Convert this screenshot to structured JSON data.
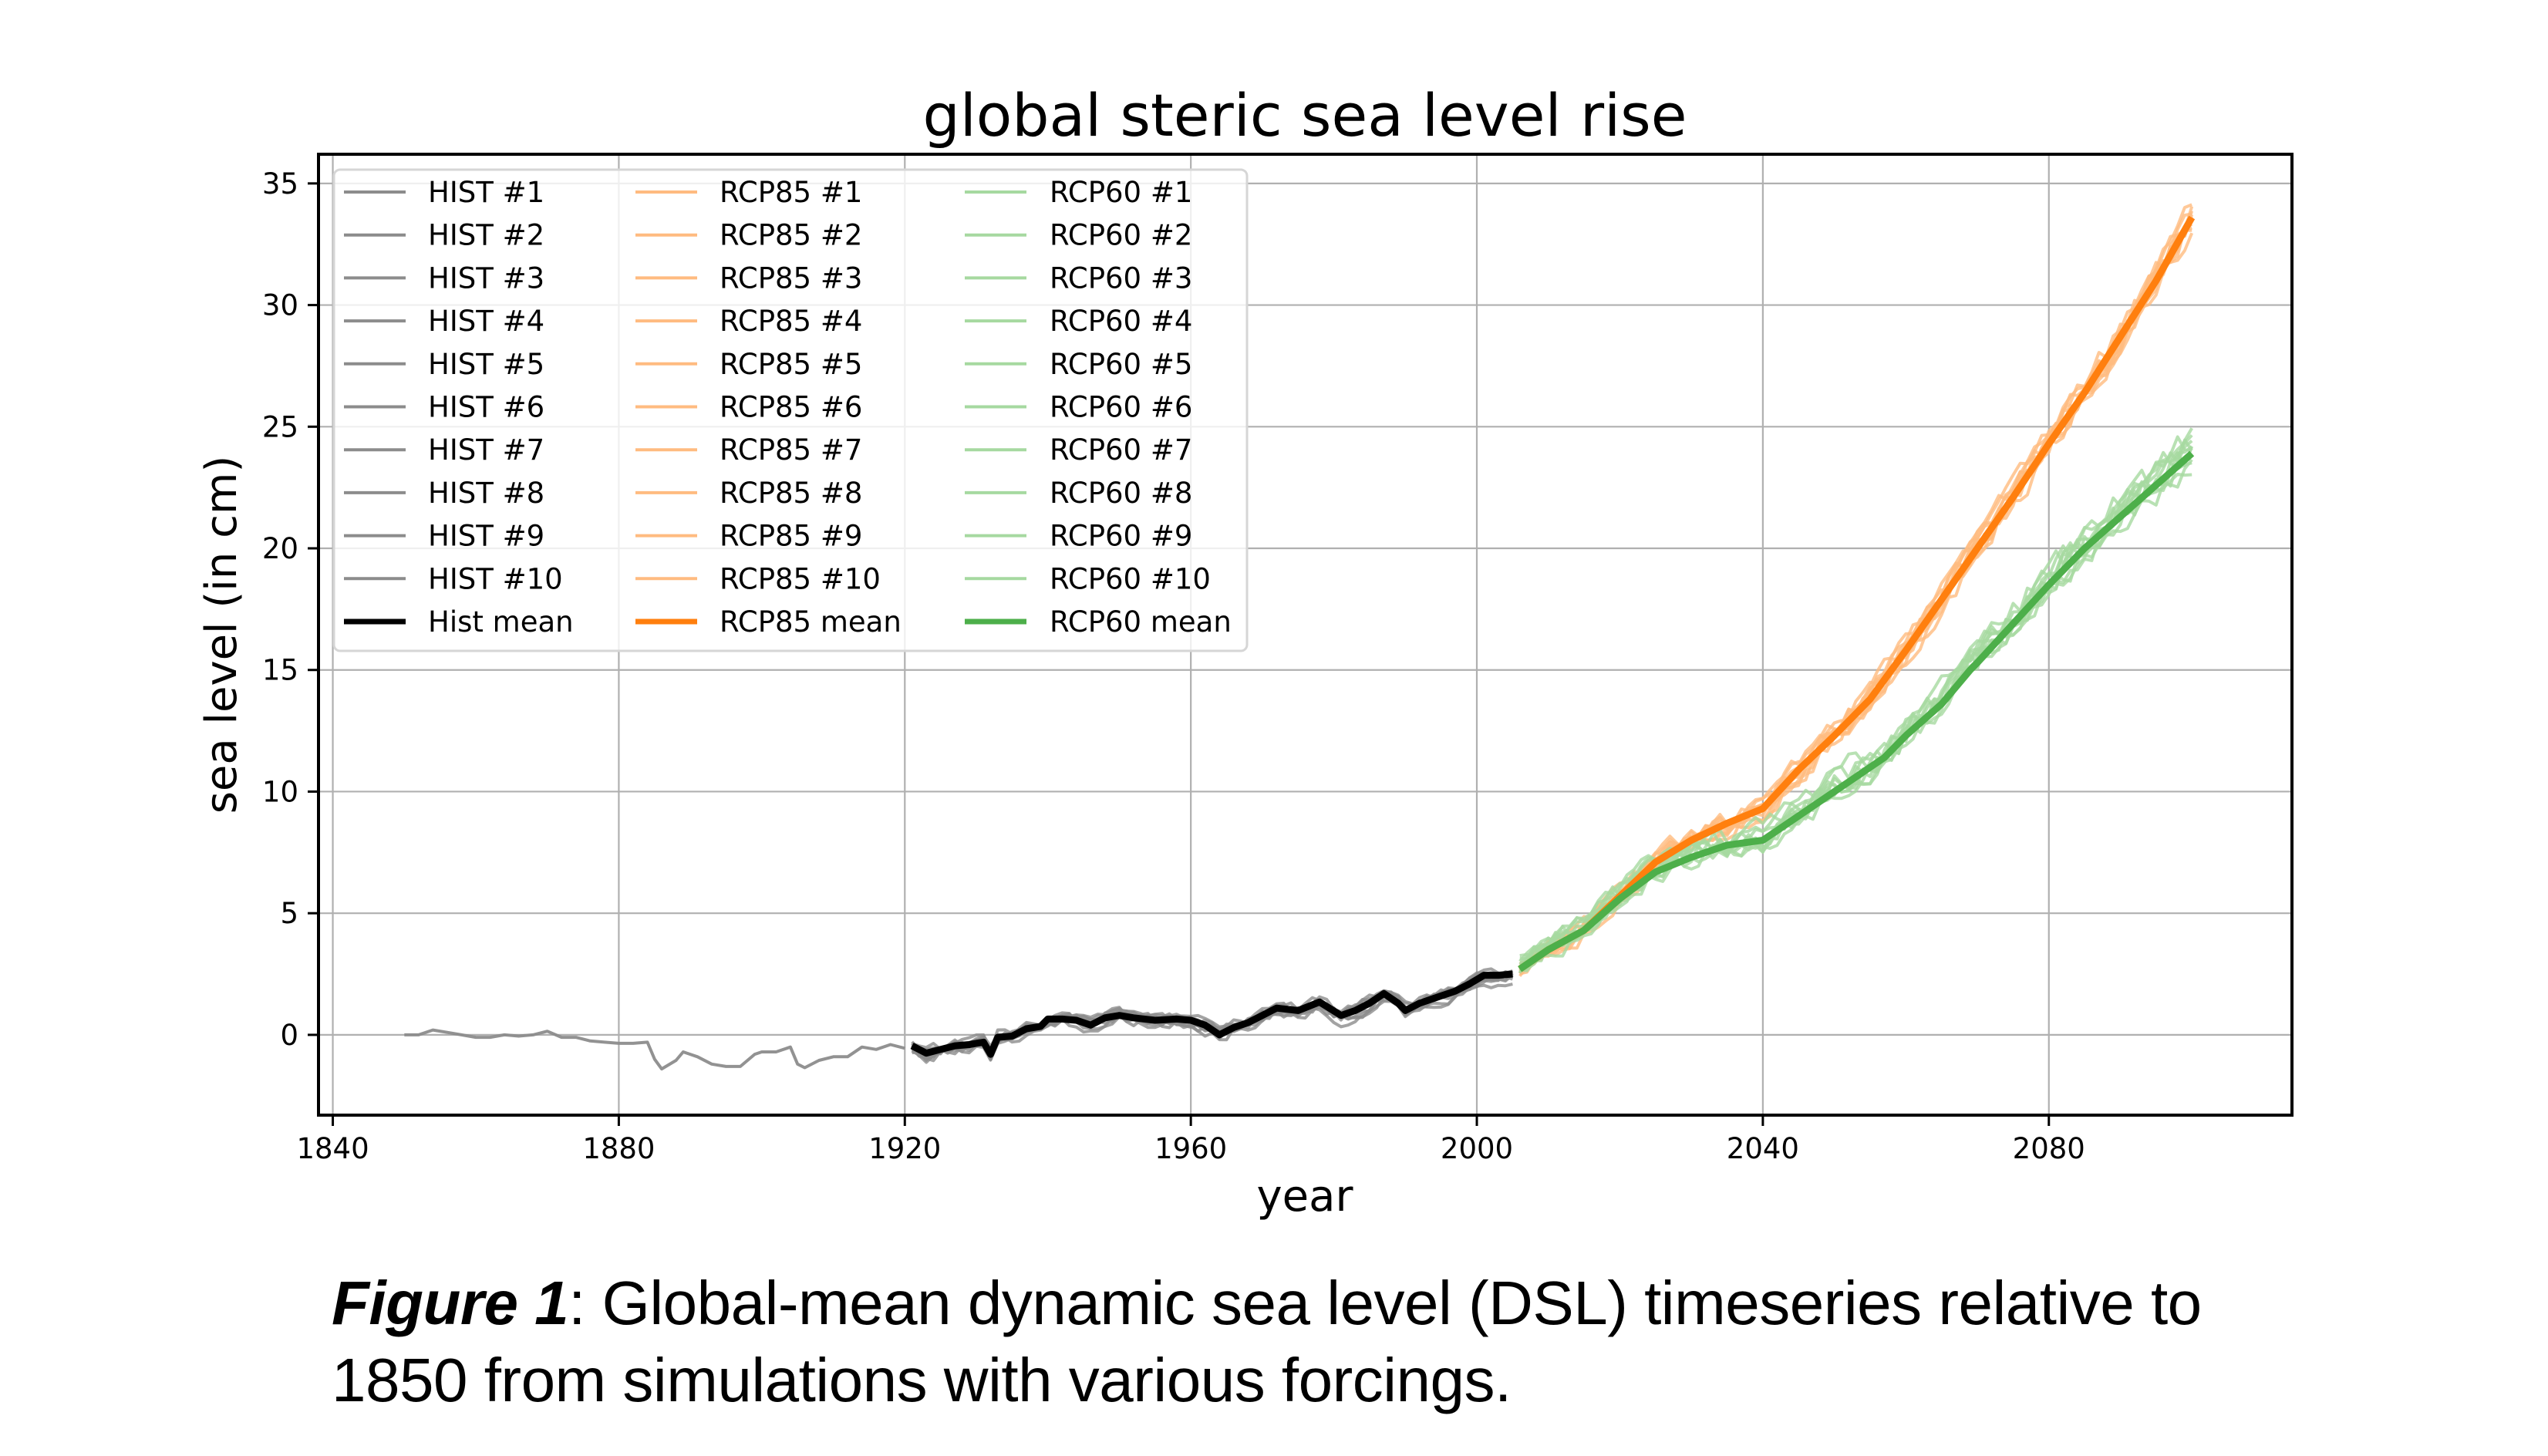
{
  "chart_data": {
    "type": "line",
    "title": "global steric sea level rise",
    "xlabel": "year",
    "ylabel": "sea level (in cm)",
    "xlim": [
      1838,
      2114
    ],
    "ylim": [
      -3.3,
      36.2
    ],
    "xticks": [
      1840,
      1880,
      1920,
      1960,
      2000,
      2040,
      2080
    ],
    "yticks": [
      0,
      5,
      10,
      15,
      20,
      25,
      30,
      35
    ],
    "grid": true,
    "legend": {
      "placement": "top-left",
      "columns": 3,
      "entries": [
        {
          "label": "HIST #1",
          "group": "hist",
          "kind": "member"
        },
        {
          "label": "HIST #2",
          "group": "hist",
          "kind": "member"
        },
        {
          "label": "HIST #3",
          "group": "hist",
          "kind": "member"
        },
        {
          "label": "HIST #4",
          "group": "hist",
          "kind": "member"
        },
        {
          "label": "HIST #5",
          "group": "hist",
          "kind": "member"
        },
        {
          "label": "HIST #6",
          "group": "hist",
          "kind": "member"
        },
        {
          "label": "HIST #7",
          "group": "hist",
          "kind": "member"
        },
        {
          "label": "HIST #8",
          "group": "hist",
          "kind": "member"
        },
        {
          "label": "HIST #9",
          "group": "hist",
          "kind": "member"
        },
        {
          "label": "HIST #10",
          "group": "hist",
          "kind": "member"
        },
        {
          "label": "Hist mean",
          "group": "hist",
          "kind": "mean"
        },
        {
          "label": "RCP85 #1",
          "group": "rcp85",
          "kind": "member"
        },
        {
          "label": "RCP85 #2",
          "group": "rcp85",
          "kind": "member"
        },
        {
          "label": "RCP85 #3",
          "group": "rcp85",
          "kind": "member"
        },
        {
          "label": "RCP85 #4",
          "group": "rcp85",
          "kind": "member"
        },
        {
          "label": "RCP85 #5",
          "group": "rcp85",
          "kind": "member"
        },
        {
          "label": "RCP85 #6",
          "group": "rcp85",
          "kind": "member"
        },
        {
          "label": "RCP85 #7",
          "group": "rcp85",
          "kind": "member"
        },
        {
          "label": "RCP85 #8",
          "group": "rcp85",
          "kind": "member"
        },
        {
          "label": "RCP85 #9",
          "group": "rcp85",
          "kind": "member"
        },
        {
          "label": "RCP85 #10",
          "group": "rcp85",
          "kind": "member"
        },
        {
          "label": "RCP85 mean",
          "group": "rcp85",
          "kind": "mean"
        },
        {
          "label": "RCP60 #1",
          "group": "rcp60",
          "kind": "member"
        },
        {
          "label": "RCP60 #2",
          "group": "rcp60",
          "kind": "member"
        },
        {
          "label": "RCP60 #3",
          "group": "rcp60",
          "kind": "member"
        },
        {
          "label": "RCP60 #4",
          "group": "rcp60",
          "kind": "member"
        },
        {
          "label": "RCP60 #5",
          "group": "rcp60",
          "kind": "member"
        },
        {
          "label": "RCP60 #6",
          "group": "rcp60",
          "kind": "member"
        },
        {
          "label": "RCP60 #7",
          "group": "rcp60",
          "kind": "member"
        },
        {
          "label": "RCP60 #8",
          "group": "rcp60",
          "kind": "member"
        },
        {
          "label": "RCP60 #9",
          "group": "rcp60",
          "kind": "member"
        },
        {
          "label": "RCP60 #10",
          "group": "rcp60",
          "kind": "member"
        },
        {
          "label": "RCP60 mean",
          "group": "rcp60",
          "kind": "mean"
        }
      ]
    },
    "groups": {
      "hist": {
        "member_color": "#8c8c8c",
        "mean_color": "#000000",
        "member_count": 10,
        "member_spread_cm": 0.35
      },
      "rcp85": {
        "member_color": "#ffbb80",
        "mean_color": "#ff7f0e",
        "member_count": 10,
        "member_spread_cm": 0.45
      },
      "rcp60": {
        "member_color": "#a6d9a0",
        "mean_color": "#4daf4a",
        "member_count": 10,
        "member_spread_cm": 0.55
      }
    },
    "series": [
      {
        "name": "HIST (single run, pre-1921)",
        "group": "hist",
        "kind": "member",
        "x": [
          1850,
          1852,
          1854,
          1856,
          1858,
          1860,
          1862,
          1864,
          1866,
          1868,
          1870,
          1872,
          1874,
          1876,
          1878,
          1880,
          1882,
          1884,
          1885,
          1886,
          1888,
          1889,
          1891,
          1893,
          1895,
          1897,
          1899,
          1900,
          1902,
          1904,
          1905,
          1906,
          1908,
          1910,
          1912,
          1914,
          1916,
          1918,
          1920
        ],
        "y": [
          0.0,
          0.0,
          0.2,
          0.1,
          0.0,
          -0.1,
          -0.1,
          0.0,
          -0.05,
          0.0,
          0.15,
          -0.1,
          -0.1,
          -0.25,
          -0.3,
          -0.35,
          -0.35,
          -0.3,
          -1.0,
          -1.4,
          -1.05,
          -0.7,
          -0.9,
          -1.2,
          -1.3,
          -1.3,
          -0.8,
          -0.7,
          -0.7,
          -0.5,
          -1.2,
          -1.35,
          -1.05,
          -0.9,
          -0.9,
          -0.5,
          -0.6,
          -0.4,
          -0.55
        ]
      },
      {
        "name": "Hist mean",
        "group": "hist",
        "kind": "mean",
        "x": [
          1921,
          1923,
          1925,
          1927,
          1929,
          1931,
          1932,
          1933,
          1935,
          1937,
          1939,
          1940,
          1942,
          1944,
          1946,
          1948,
          1950,
          1952,
          1955,
          1958,
          1960,
          1962,
          1964,
          1966,
          1968,
          1970,
          1972,
          1975,
          1978,
          1981,
          1983,
          1985,
          1987,
          1989,
          1990,
          1992,
          1995,
          1997,
          1999,
          2001,
          2003,
          2005
        ],
        "y": [
          -0.45,
          -0.75,
          -0.6,
          -0.45,
          -0.4,
          -0.3,
          -0.8,
          -0.1,
          -0.05,
          0.25,
          0.35,
          0.65,
          0.65,
          0.6,
          0.4,
          0.7,
          0.8,
          0.7,
          0.6,
          0.65,
          0.6,
          0.4,
          0.0,
          0.3,
          0.5,
          0.8,
          1.1,
          1.0,
          1.35,
          0.8,
          1.0,
          1.3,
          1.7,
          1.3,
          1.0,
          1.3,
          1.6,
          1.8,
          2.1,
          2.45,
          2.45,
          2.5
        ]
      },
      {
        "name": "RCP85 mean",
        "group": "rcp85",
        "kind": "mean",
        "x": [
          2006,
          2010,
          2015,
          2020,
          2025,
          2030,
          2035,
          2040,
          2045,
          2050,
          2055,
          2058,
          2060,
          2065,
          2070,
          2075,
          2080,
          2085,
          2090,
          2095,
          2100
        ],
        "y": [
          2.7,
          3.5,
          4.3,
          5.7,
          7.1,
          8.0,
          8.7,
          9.3,
          10.9,
          12.3,
          13.8,
          15.0,
          15.8,
          17.9,
          20.0,
          22.1,
          24.3,
          26.4,
          28.7,
          31.0,
          33.6
        ]
      },
      {
        "name": "RCP60 mean",
        "group": "rcp60",
        "kind": "mean",
        "x": [
          2006,
          2010,
          2015,
          2020,
          2025,
          2030,
          2035,
          2040,
          2045,
          2050,
          2057,
          2060,
          2065,
          2069,
          2070,
          2075,
          2080,
          2085,
          2090,
          2095,
          2100
        ],
        "y": [
          2.7,
          3.5,
          4.3,
          5.6,
          6.7,
          7.3,
          7.8,
          8.0,
          9.0,
          10.0,
          11.4,
          12.3,
          13.6,
          15.0,
          15.3,
          16.9,
          18.5,
          20.0,
          21.3,
          22.6,
          23.9
        ]
      }
    ]
  },
  "caption": {
    "label": "Figure 1",
    "text": ": Global-mean dynamic sea level (DSL) timeseries relative to 1850 from simulations with various forcings."
  }
}
